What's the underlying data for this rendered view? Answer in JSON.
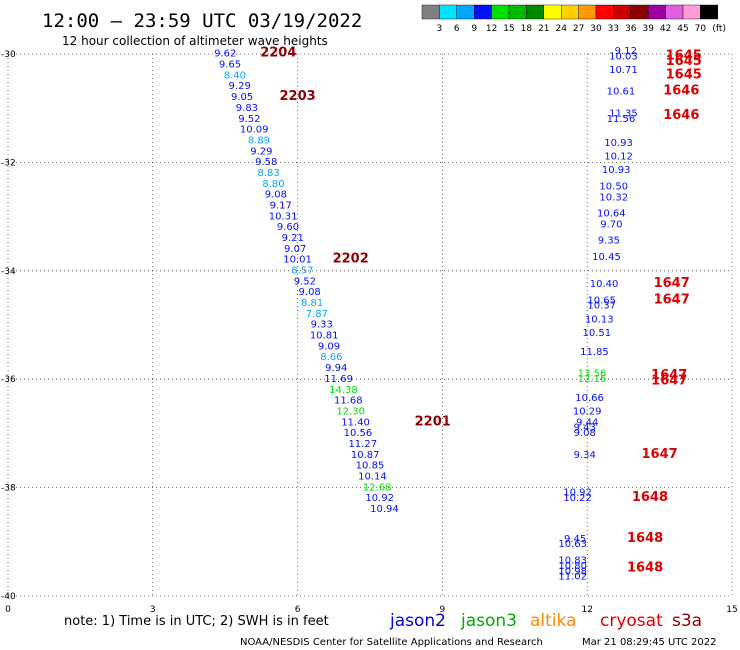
{
  "title": "12:00 – 23:59 UTC 03/19/2022",
  "subtitle": "12 hour collection of altimeter wave heights",
  "color_scale": {
    "colors": [
      "#808080",
      "#00e5ff",
      "#00a6ff",
      "#0010ff",
      "#00e000",
      "#00b800",
      "#008800",
      "#ffff00",
      "#ffd000",
      "#ff9a00",
      "#ff0000",
      "#c80000",
      "#8b0000",
      "#a000a0",
      "#e060e0",
      "#ff9ad8",
      "#000000"
    ],
    "labels": [
      "3",
      "6",
      "9",
      "12",
      "15",
      "18",
      "21",
      "24",
      "27",
      "30",
      "33",
      "36",
      "39",
      "42",
      "45",
      "70"
    ],
    "unit": "(ft)"
  },
  "note": "note:  1) Time is in UTC; 2) SWH is in feet",
  "legend": [
    {
      "name": "jason2",
      "color": "#0000dd"
    },
    {
      "name": "jason3",
      "color": "#00aa00"
    },
    {
      "name": "altika",
      "color": "#ff8c00"
    },
    {
      "name": "cryosat",
      "color": "#dd0000"
    },
    {
      "name": "s3a",
      "color": "#8b0000"
    }
  ],
  "footer_left": "NOAA/NESDIS Center for Satellite Applications and Research",
  "footer_right": "Mar 21 08:29:45 UTC 2022",
  "chart_data": {
    "type": "scatter",
    "title": "12:00 – 23:59 UTC 03/19/2022",
    "subtitle": "12 hour collection of altimeter wave heights",
    "xlim": [
      0,
      15
    ],
    "ylim": [
      -40,
      -30
    ],
    "x_ticks": [
      "0",
      "3",
      "6",
      "9",
      "12",
      "15"
    ],
    "y_ticks": [
      "-30",
      "-32",
      "-34",
      "-36",
      "-38",
      "-40"
    ],
    "grid": true,
    "series": [
      {
        "name": "",
        "points": [
          {
            "x": 4.5,
            "y": -30.05,
            "v": "9.62",
            "c": "#0010ff"
          },
          {
            "x": 4.6,
            "y": -30.25,
            "v": "9.65",
            "c": "#0010ff"
          },
          {
            "x": 4.7,
            "y": -30.45,
            "v": "8.40",
            "c": "#00a6ff"
          },
          {
            "x": 4.8,
            "y": -30.65,
            "v": "9.29",
            "c": "#0010ff"
          },
          {
            "x": 4.85,
            "y": -30.85,
            "v": "9.05",
            "c": "#0010ff"
          },
          {
            "x": 4.95,
            "y": -31.05,
            "v": "9.83",
            "c": "#0010ff"
          },
          {
            "x": 5.0,
            "y": -31.25,
            "v": "9.52",
            "c": "#0010ff"
          },
          {
            "x": 5.1,
            "y": -31.45,
            "v": "10.09",
            "c": "#0010ff"
          },
          {
            "x": 5.2,
            "y": -31.65,
            "v": "8.89",
            "c": "#00a6ff"
          },
          {
            "x": 5.25,
            "y": -31.85,
            "v": "9.29",
            "c": "#0010ff"
          },
          {
            "x": 5.35,
            "y": -32.05,
            "v": "9.58",
            "c": "#0010ff"
          },
          {
            "x": 5.4,
            "y": -32.25,
            "v": "8.83",
            "c": "#00a6ff"
          },
          {
            "x": 5.5,
            "y": -32.45,
            "v": "8.80",
            "c": "#00a6ff"
          },
          {
            "x": 5.55,
            "y": -32.65,
            "v": "9.08",
            "c": "#0010ff"
          },
          {
            "x": 5.65,
            "y": -32.85,
            "v": "9.17",
            "c": "#0010ff"
          },
          {
            "x": 5.7,
            "y": -33.05,
            "v": "10.31",
            "c": "#0010ff"
          },
          {
            "x": 5.8,
            "y": -33.25,
            "v": "9.60",
            "c": "#0010ff"
          },
          {
            "x": 5.9,
            "y": -33.45,
            "v": "9.21",
            "c": "#0010ff"
          },
          {
            "x": 5.95,
            "y": -33.65,
            "v": "9.07",
            "c": "#0010ff"
          },
          {
            "x": 6.0,
            "y": -33.85,
            "v": "10.01",
            "c": "#0010ff"
          },
          {
            "x": 6.1,
            "y": -34.05,
            "v": "8.57",
            "c": "#00a6ff"
          },
          {
            "x": 6.15,
            "y": -34.25,
            "v": "9.52",
            "c": "#0010ff"
          },
          {
            "x": 6.25,
            "y": -34.45,
            "v": "9.08",
            "c": "#0010ff"
          },
          {
            "x": 6.3,
            "y": -34.65,
            "v": "8.81",
            "c": "#00a6ff"
          },
          {
            "x": 6.4,
            "y": -34.85,
            "v": "7.87",
            "c": "#00a6ff"
          },
          {
            "x": 6.5,
            "y": -35.05,
            "v": "9.33",
            "c": "#0010ff"
          },
          {
            "x": 6.55,
            "y": -35.25,
            "v": "10.81",
            "c": "#0010ff"
          },
          {
            "x": 6.65,
            "y": -35.45,
            "v": "9.09",
            "c": "#0010ff"
          },
          {
            "x": 6.7,
            "y": -35.65,
            "v": "8.66",
            "c": "#00a6ff"
          },
          {
            "x": 6.8,
            "y": -35.85,
            "v": "9.94",
            "c": "#0010ff"
          },
          {
            "x": 6.85,
            "y": -36.05,
            "v": "11.69",
            "c": "#0010ff"
          },
          {
            "x": 6.95,
            "y": -36.25,
            "v": "14.38",
            "c": "#00e000"
          },
          {
            "x": 7.05,
            "y": -36.45,
            "v": "11.68",
            "c": "#0010ff"
          },
          {
            "x": 7.1,
            "y": -36.65,
            "v": "12.30",
            "c": "#00e000"
          },
          {
            "x": 7.2,
            "y": -36.85,
            "v": "11.40",
            "c": "#0010ff"
          },
          {
            "x": 7.25,
            "y": -37.05,
            "v": "10.56",
            "c": "#0010ff"
          },
          {
            "x": 7.35,
            "y": -37.25,
            "v": "11.27",
            "c": "#0010ff"
          },
          {
            "x": 7.4,
            "y": -37.45,
            "v": "10.87",
            "c": "#0010ff"
          },
          {
            "x": 7.5,
            "y": -37.65,
            "v": "10.85",
            "c": "#0010ff"
          },
          {
            "x": 7.55,
            "y": -37.85,
            "v": "10.14",
            "c": "#0010ff"
          },
          {
            "x": 7.65,
            "y": -38.05,
            "v": "12.68",
            "c": "#00e000"
          },
          {
            "x": 7.7,
            "y": -38.25,
            "v": "10.92",
            "c": "#0010ff"
          },
          {
            "x": 7.8,
            "y": -38.45,
            "v": "10.94",
            "c": "#0010ff"
          },
          {
            "x": 12.8,
            "y": -30.0,
            "v": "9.12",
            "c": "#0010ff"
          },
          {
            "x": 12.75,
            "y": -30.1,
            "v": "10.03",
            "c": "#0010ff"
          },
          {
            "x": 12.75,
            "y": -30.35,
            "v": "10.71",
            "c": "#0010ff"
          },
          {
            "x": 12.7,
            "y": -30.75,
            "v": "10.61",
            "c": "#0010ff"
          },
          {
            "x": 12.75,
            "y": -31.15,
            "v": "11.35",
            "c": "#0010ff"
          },
          {
            "x": 12.7,
            "y": -31.25,
            "v": "11.56",
            "c": "#0010ff"
          },
          {
            "x": 12.65,
            "y": -31.7,
            "v": "10.93",
            "c": "#0010ff"
          },
          {
            "x": 12.65,
            "y": -31.95,
            "v": "10.12",
            "c": "#0010ff"
          },
          {
            "x": 12.6,
            "y": -32.2,
            "v": "10.93",
            "c": "#0010ff"
          },
          {
            "x": 12.55,
            "y": -32.5,
            "v": "10.50",
            "c": "#0010ff"
          },
          {
            "x": 12.55,
            "y": -32.7,
            "v": "10.32",
            "c": "#0010ff"
          },
          {
            "x": 12.5,
            "y": -33.0,
            "v": "10.64",
            "c": "#0010ff"
          },
          {
            "x": 12.5,
            "y": -33.2,
            "v": "9.70",
            "c": "#0010ff"
          },
          {
            "x": 12.45,
            "y": -33.5,
            "v": "9.35",
            "c": "#0010ff"
          },
          {
            "x": 12.4,
            "y": -33.8,
            "v": "10.45",
            "c": "#0010ff"
          },
          {
            "x": 12.35,
            "y": -34.3,
            "v": "10.40",
            "c": "#0010ff"
          },
          {
            "x": 12.3,
            "y": -34.6,
            "v": "10.65",
            "c": "#0010ff"
          },
          {
            "x": 12.3,
            "y": -34.7,
            "v": "10.37",
            "c": "#0010ff"
          },
          {
            "x": 12.25,
            "y": -34.95,
            "v": "10.13",
            "c": "#0010ff"
          },
          {
            "x": 12.2,
            "y": -35.2,
            "v": "10.51",
            "c": "#0010ff"
          },
          {
            "x": 12.15,
            "y": -35.55,
            "v": "11.85",
            "c": "#0010ff"
          },
          {
            "x": 12.1,
            "y": -35.95,
            "v": "13.56",
            "c": "#00e000"
          },
          {
            "x": 12.1,
            "y": -36.05,
            "v": "12.16",
            "c": "#00e000"
          },
          {
            "x": 12.05,
            "y": -36.4,
            "v": "10.66",
            "c": "#0010ff"
          },
          {
            "x": 12.0,
            "y": -36.65,
            "v": "10.29",
            "c": "#0010ff"
          },
          {
            "x": 12.0,
            "y": -36.85,
            "v": "9.44",
            "c": "#0010ff"
          },
          {
            "x": 11.95,
            "y": -36.95,
            "v": "9.43",
            "c": "#0010ff"
          },
          {
            "x": 11.95,
            "y": -37.05,
            "v": "9.08",
            "c": "#0010ff"
          },
          {
            "x": 11.95,
            "y": -37.45,
            "v": "9.34",
            "c": "#0010ff"
          },
          {
            "x": 11.8,
            "y": -38.15,
            "v": "10.92",
            "c": "#0010ff"
          },
          {
            "x": 11.8,
            "y": -38.25,
            "v": "10.22",
            "c": "#0010ff"
          },
          {
            "x": 11.75,
            "y": -39.0,
            "v": "9.45",
            "c": "#0010ff"
          },
          {
            "x": 11.7,
            "y": -39.1,
            "v": "10.63",
            "c": "#0010ff"
          },
          {
            "x": 11.7,
            "y": -39.4,
            "v": "10.83",
            "c": "#0010ff"
          },
          {
            "x": 11.7,
            "y": -39.5,
            "v": "10.80",
            "c": "#0010ff"
          },
          {
            "x": 11.7,
            "y": -39.6,
            "v": "10.98",
            "c": "#0010ff"
          },
          {
            "x": 11.7,
            "y": -39.7,
            "v": "11.02",
            "c": "#0010ff"
          }
        ]
      }
    ],
    "track_labels": [
      {
        "x": 5.6,
        "y": -30.05,
        "t": "2204",
        "c": "#8b0000"
      },
      {
        "x": 6.0,
        "y": -30.85,
        "t": "2203",
        "c": "#8b0000"
      },
      {
        "x": 7.1,
        "y": -33.85,
        "t": "2202",
        "c": "#8b0000"
      },
      {
        "x": 8.8,
        "y": -36.85,
        "t": "2201",
        "c": "#8b0000"
      },
      {
        "x": 14.0,
        "y": -30.1,
        "t": "1645",
        "c": "#dd0000"
      },
      {
        "x": 14.0,
        "y": -30.2,
        "t": "1645",
        "c": "#dd0000"
      },
      {
        "x": 14.0,
        "y": -30.45,
        "t": "1645",
        "c": "#dd0000"
      },
      {
        "x": 13.95,
        "y": -30.75,
        "t": "1646",
        "c": "#dd0000"
      },
      {
        "x": 13.95,
        "y": -31.2,
        "t": "1646",
        "c": "#dd0000"
      },
      {
        "x": 13.75,
        "y": -34.3,
        "t": "1647",
        "c": "#dd0000"
      },
      {
        "x": 13.75,
        "y": -34.6,
        "t": "1647",
        "c": "#dd0000"
      },
      {
        "x": 13.7,
        "y": -36.0,
        "t": "1647",
        "c": "#dd0000"
      },
      {
        "x": 13.7,
        "y": -36.1,
        "t": "1647",
        "c": "#dd0000"
      },
      {
        "x": 13.5,
        "y": -37.45,
        "t": "1647",
        "c": "#dd0000"
      },
      {
        "x": 13.3,
        "y": -38.25,
        "t": "1648",
        "c": "#dd0000"
      },
      {
        "x": 13.2,
        "y": -39.0,
        "t": "1648",
        "c": "#dd0000"
      },
      {
        "x": 13.2,
        "y": -39.55,
        "t": "1648",
        "c": "#dd0000"
      }
    ]
  }
}
